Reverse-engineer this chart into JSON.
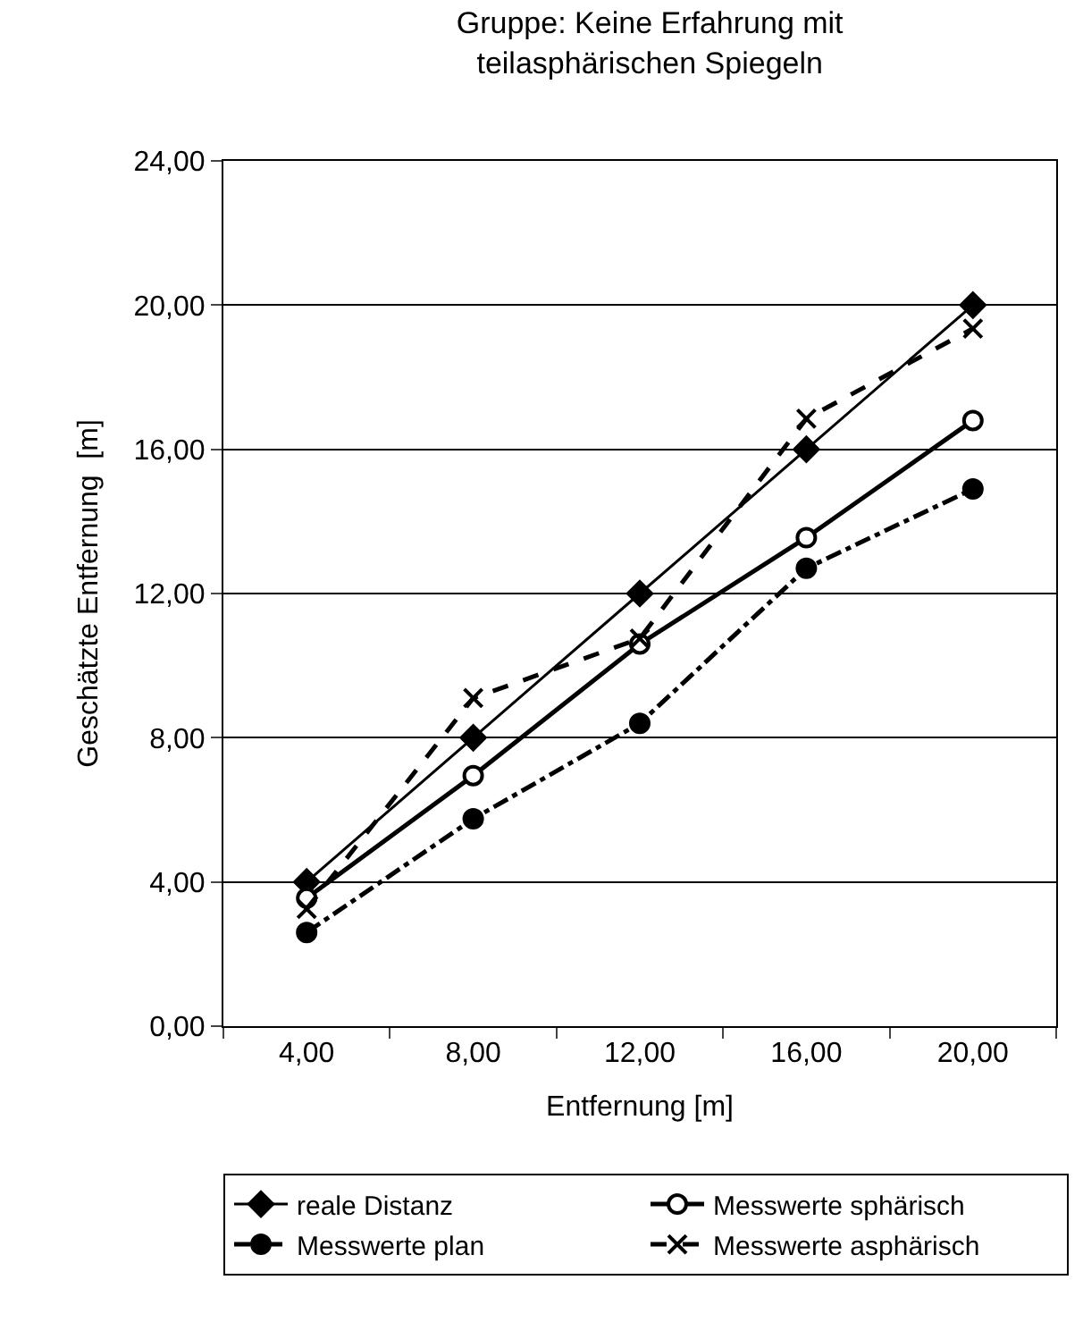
{
  "chart_data": {
    "type": "line",
    "title": "Gruppe: Keine Erfahrung mit\nteilasphärischen Spiegeln",
    "xlabel": "Entfernung [m]",
    "ylabel": "Geschätzte Entfernung  [m]",
    "categories": [
      "4,00",
      "8,00",
      "12,00",
      "16,00",
      "20,00"
    ],
    "series": [
      {
        "name": "reale Distanz",
        "color": "#000000",
        "values": [
          4,
          8,
          12,
          16,
          20
        ],
        "marker": "diamond",
        "line_style": "solid"
      },
      {
        "name": "Messwerte sphärisch",
        "color": "#000000",
        "values": [
          3.55,
          6.95,
          10.6,
          13.55,
          16.8
        ],
        "marker": "circle",
        "line_style": "solid"
      },
      {
        "name": "Messwerte plan",
        "color": "#000000",
        "values": [
          2.6,
          5.75,
          8.4,
          12.7,
          14.9
        ],
        "marker": "circle",
        "line_style": "dashdot"
      },
      {
        "name": "Messwerte asphärisch",
        "color": "#000000",
        "values": [
          3.25,
          9.1,
          10.75,
          16.85,
          19.35
        ],
        "marker": "cross",
        "line_style": "dashed"
      }
    ],
    "ylim": [
      0,
      24
    ],
    "yticks": [
      {
        "value": 0,
        "label": "0,00"
      },
      {
        "value": 4,
        "label": "4,00"
      },
      {
        "value": 8,
        "label": "8,00"
      },
      {
        "value": 12,
        "label": "12,00"
      },
      {
        "value": 16,
        "label": "16,00"
      },
      {
        "value": 20,
        "label": "20,00"
      },
      {
        "value": 24,
        "label": "24,00"
      }
    ],
    "grid": "y",
    "legend": "bottom"
  }
}
